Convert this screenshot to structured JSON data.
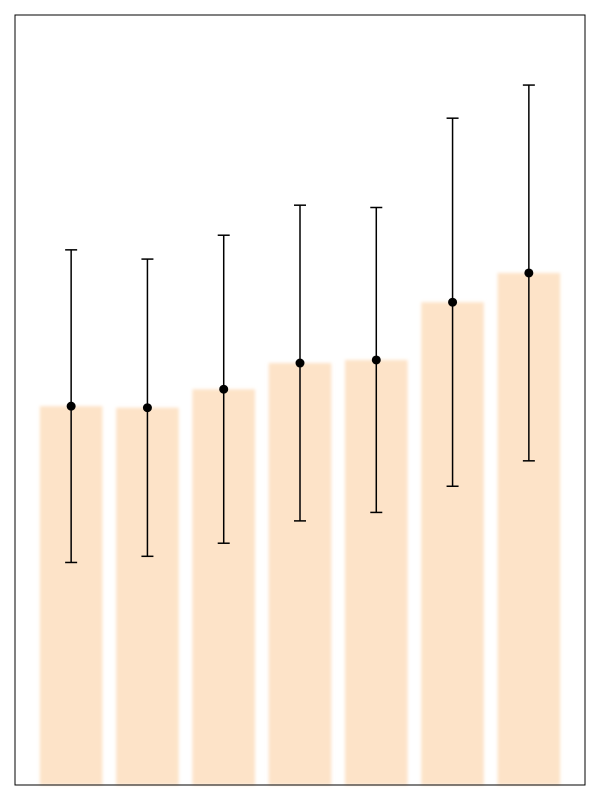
{
  "chart_data": {
    "type": "bar",
    "values": [
      49.2,
      49.0,
      51.4,
      54.8,
      55.2,
      62.7,
      66.5
    ],
    "errors": [
      20.3,
      19.3,
      20.0,
      20.5,
      19.8,
      23.9,
      24.4
    ],
    "color": "#fde3c8",
    "error_color": "#000000",
    "ylim": [
      0,
      100
    ]
  }
}
